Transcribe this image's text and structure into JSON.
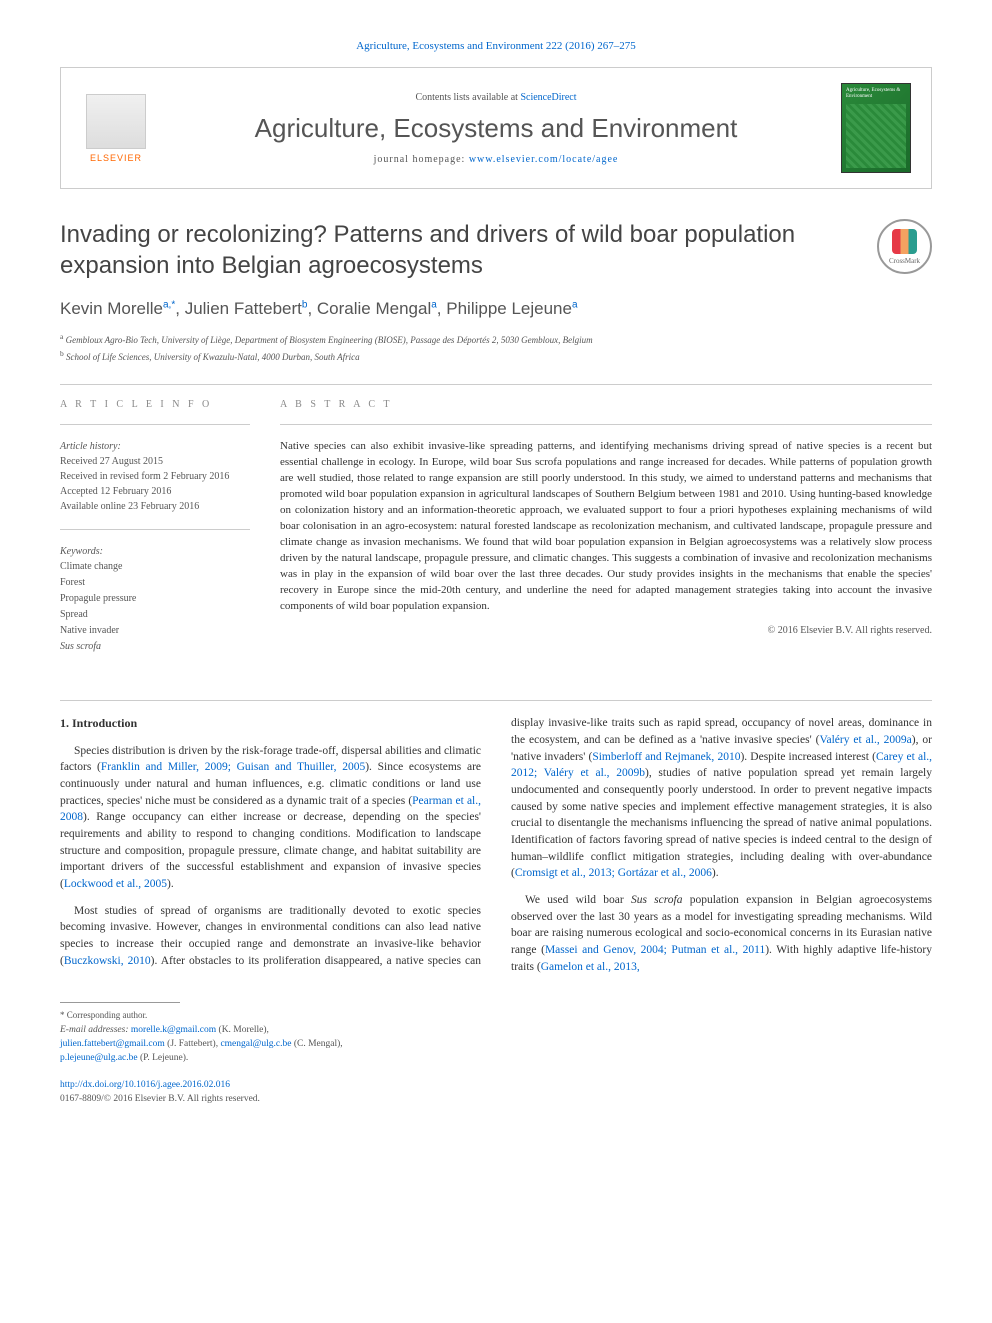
{
  "topbar": {
    "citation": "Agriculture, Ecosystems and Environment 222 (2016) 267–275"
  },
  "header": {
    "contents_prefix": "Contents lists available at ",
    "contents_link": "ScienceDirect",
    "journal_name": "Agriculture, Ecosystems and Environment",
    "homepage_prefix": "journal homepage: ",
    "homepage_url": "www.elsevier.com/locate/agee",
    "elsevier_label": "ELSEVIER",
    "cover_label": "Agriculture, Ecosystems & Environment"
  },
  "title": "Invading or recolonizing? Patterns and drivers of wild boar population expansion into Belgian agroecosystems",
  "authors_html": "Kevin Morelle|a,*|, Julien Fattebert|b|, Coralie Mengal|a|, Philippe Lejeune|a",
  "authors": [
    {
      "name": "Kevin Morelle",
      "sup": "a,*"
    },
    {
      "name": "Julien Fattebert",
      "sup": "b"
    },
    {
      "name": "Coralie Mengal",
      "sup": "a"
    },
    {
      "name": "Philippe Lejeune",
      "sup": "a"
    }
  ],
  "affiliations": [
    {
      "sup": "a",
      "text": "Gembloux Agro-Bio Tech, University of Liège, Department of Biosystem Engineering (BIOSE), Passage des Déportés 2, 5030 Gembloux, Belgium"
    },
    {
      "sup": "b",
      "text": "School of Life Sciences, University of Kwazulu-Natal, 4000 Durban, South Africa"
    }
  ],
  "article_info": {
    "heading": "A R T I C L E  I N F O",
    "history_label": "Article history:",
    "history": [
      "Received 27 August 2015",
      "Received in revised form 2 February 2016",
      "Accepted 12 February 2016",
      "Available online 23 February 2016"
    ],
    "keywords_label": "Keywords:",
    "keywords": [
      "Climate change",
      "Forest",
      "Propagule pressure",
      "Spread",
      "Native invader"
    ],
    "keywords_italic": "Sus scrofa"
  },
  "abstract": {
    "heading": "A B S T R A C T",
    "text": "Native species can also exhibit invasive-like spreading patterns, and identifying mechanisms driving spread of native species is a recent but essential challenge in ecology. In Europe, wild boar Sus scrofa populations and range increased for decades. While patterns of population growth are well studied, those related to range expansion are still poorly understood. In this study, we aimed to understand patterns and mechanisms that promoted wild boar population expansion in agricultural landscapes of Southern Belgium between 1981 and 2010. Using hunting-based knowledge on colonization history and an information-theoretic approach, we evaluated support to four a priori hypotheses explaining mechanisms of wild boar colonisation in an agro-ecosystem: natural forested landscape as recolonization mechanism, and cultivated landscape, propagule pressure and climate change as invasion mechanisms. We found that wild boar population expansion in Belgian agroecosystems was a relatively slow process driven by the natural landscape, propagule pressure, and climatic changes. This suggests a combination of invasive and recolonization mechanisms was in play in the expansion of wild boar over the last three decades. Our study provides insights in the mechanisms that enable the species' recovery in Europe since the mid-20th century, and underline the need for adapted management strategies taking into account the invasive components of wild boar population expansion.",
    "copyright": "© 2016 Elsevier B.V. All rights reserved."
  },
  "body": {
    "heading": "1. Introduction",
    "p1_pre": "Species distribution is driven by the risk-forage trade-off, dispersal abilities and climatic factors (",
    "p1_ref1": "Franklin and Miller, 2009; Guisan and Thuiller, 2005",
    "p1_mid1": "). Since ecosystems are continuously under natural and human influences, e.g. climatic conditions or land use practices, species' niche must be considered as a dynamic trait of a species (",
    "p1_ref2": "Pearman et al., 2008",
    "p1_mid2": "). Range occupancy can either increase or decrease, depending on the species' requirements and ability to respond to changing conditions. Modification to landscape structure and composition, propagule pressure, climate change, and habitat suitability are important drivers of the successful establishment and expansion of invasive species (",
    "p1_ref3": "Lockwood et al., 2005",
    "p1_end": ").",
    "p2_pre": "Most studies of spread of organisms are traditionally devoted to exotic species becoming invasive. However, changes in environmental conditions can also lead native species to increase their occupied range and demonstrate an invasive-like behavior (",
    "p2_ref1": "Buczkowski, 2010",
    "p2_mid1": "). After obstacles to its proliferation disappeared, a native species can display invasive-like traits such as rapid spread, occupancy of novel areas, dominance in the ecosystem, and can be defined as a 'native invasive species' (",
    "p2_ref2": "Valéry et al., 2009a",
    "p2_mid2": "), or 'native invaders' (",
    "p2_ref3": "Simberloff and Rejmanek, 2010",
    "p2_mid3": "). Despite increased interest (",
    "p2_ref4": "Carey et al., 2012; Valéry et al., 2009b",
    "p2_mid4": "), studies of native population spread yet remain largely undocumented and consequently poorly understood. In order to prevent negative impacts caused by some native species and implement effective management strategies, it is also crucial to disentangle the mechanisms influencing the spread of native animal populations. Identification of factors favoring spread of native species is indeed central to the design of human–wildlife conflict mitigation strategies, including dealing with over-abundance (",
    "p2_ref5": "Cromsigt et al., 2013; Gortázar et al., 2006",
    "p2_end": ").",
    "p3_pre": "We used wild boar ",
    "p3_species": "Sus scrofa",
    "p3_mid1": " population expansion in Belgian agroecosystems observed over the last 30 years as a model for investigating spreading mechanisms. Wild boar are raising numerous ecological and socio-economical concerns in its Eurasian native range (",
    "p3_ref1": "Massei and Genov, 2004; Putman et al., 2011",
    "p3_mid2": "). With highly adaptive life-history traits (",
    "p3_ref2": "Gamelon et al., 2013,",
    "p3_end": ""
  },
  "footer": {
    "corr_label": "* Corresponding author.",
    "email_label": "E-mail addresses:",
    "emails": [
      {
        "addr": "morelle.k@gmail.com",
        "who": "(K. Morelle),"
      },
      {
        "addr": "julien.fattebert@gmail.com",
        "who": "(J. Fattebert),"
      },
      {
        "addr": "cmengal@ulg.c.be",
        "who": "(C. Mengal),"
      },
      {
        "addr": "p.lejeune@ulg.ac.be",
        "who": "(P. Lejeune)."
      }
    ],
    "doi": "http://dx.doi.org/10.1016/j.agee.2016.02.016",
    "issn_copyright": "0167-8809/© 2016 Elsevier B.V. All rights reserved."
  },
  "crossmark_label": "CrossMark",
  "colors": {
    "link": "#0066cc",
    "text": "#333333",
    "muted": "#555555",
    "border": "#cccccc",
    "elsevier_orange": "#ff6600",
    "cover_green": "#2a8a3a"
  }
}
